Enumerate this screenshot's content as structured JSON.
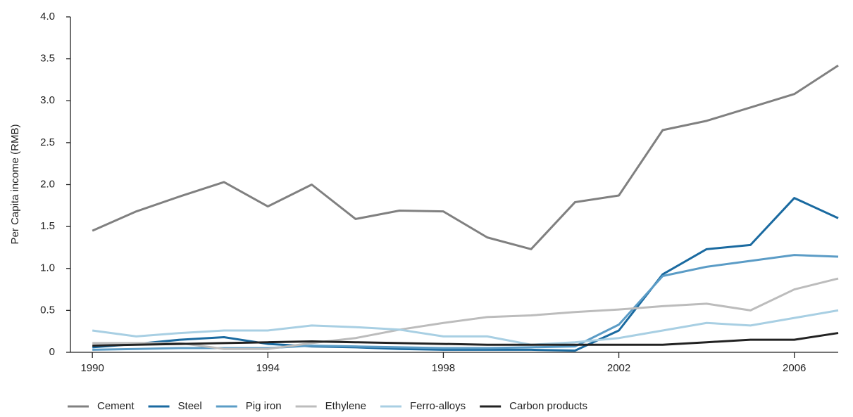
{
  "chart_data": {
    "type": "line",
    "y_label": "Per Capita income (RMB)",
    "x": [
      1990,
      1991,
      1992,
      1993,
      1994,
      1995,
      1996,
      1997,
      1998,
      1999,
      2000,
      2001,
      2002,
      2003,
      2004,
      2005,
      2006,
      2007
    ],
    "xlim": [
      1989.5,
      2007
    ],
    "xticks": [
      1990,
      1994,
      1998,
      2002,
      2006
    ],
    "ylim": [
      0,
      4
    ],
    "yticks": [
      0,
      0.5,
      {
        "value": 1,
        "label": "1.0"
      },
      1.5,
      {
        "value": 2,
        "label": "2.0"
      },
      2.5,
      {
        "value": 3,
        "label": "3.0"
      },
      3.5,
      {
        "value": 4,
        "label": "4.0"
      }
    ],
    "grid": false,
    "legend": "bottom",
    "series": [
      {
        "name": "Cement",
        "color": "#808080",
        "values": [
          1.45,
          1.68,
          1.86,
          2.03,
          1.74,
          2.0,
          1.59,
          1.69,
          1.68,
          1.37,
          1.23,
          1.79,
          1.87,
          2.65,
          2.76,
          2.92,
          3.08,
          3.42
        ]
      },
      {
        "name": "Steel",
        "color": "#1a6aa0",
        "values": [
          0.06,
          0.1,
          0.15,
          0.18,
          0.1,
          0.07,
          0.06,
          0.04,
          0.03,
          0.03,
          0.03,
          0.02,
          0.26,
          0.93,
          1.23,
          1.28,
          1.84,
          1.6
        ]
      },
      {
        "name": "Pig iron",
        "color": "#5b9cc6",
        "values": [
          0.03,
          0.04,
          0.05,
          0.05,
          0.05,
          0.08,
          0.07,
          0.06,
          0.05,
          0.05,
          0.06,
          0.07,
          0.33,
          0.91,
          1.02,
          1.09,
          1.16,
          1.14
        ]
      },
      {
        "name": "Ethylene",
        "color": "#bcbcbc",
        "values": [
          0.11,
          0.11,
          0.11,
          0.04,
          0.04,
          0.11,
          0.17,
          0.27,
          0.35,
          0.42,
          0.44,
          0.48,
          0.51,
          0.55,
          0.58,
          0.5,
          0.75,
          0.88
        ]
      },
      {
        "name": "Ferro-alloys",
        "color": "#a8cfe3",
        "values": [
          0.26,
          0.19,
          0.23,
          0.26,
          0.26,
          0.32,
          0.3,
          0.27,
          0.19,
          0.19,
          0.09,
          0.12,
          0.17,
          0.26,
          0.35,
          0.32,
          0.41,
          0.5
        ]
      },
      {
        "name": "Carbon products",
        "color": "#222222",
        "values": [
          0.08,
          0.09,
          0.1,
          0.11,
          0.12,
          0.13,
          0.12,
          0.11,
          0.1,
          0.09,
          0.09,
          0.09,
          0.09,
          0.09,
          0.12,
          0.15,
          0.15,
          0.23
        ]
      }
    ]
  }
}
